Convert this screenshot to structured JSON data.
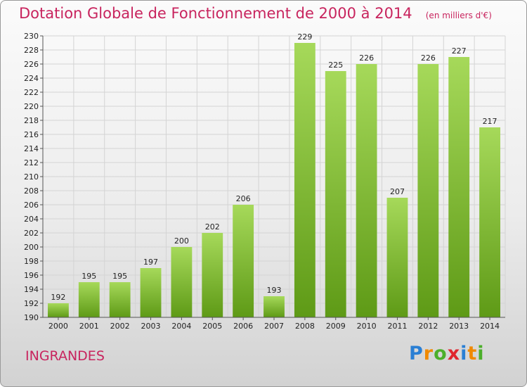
{
  "header": {
    "title": "Dotation Globale de Fonctionnement de 2000 à 2014",
    "subtitle": "(en milliers d'€)"
  },
  "footer": {
    "commune": "INGRANDES",
    "logo": [
      "P",
      "r",
      "o",
      "x",
      "i",
      "t",
      "i"
    ],
    "logo_colors": [
      "#2a7fd4",
      "#f08a00",
      "#4caf2a",
      "#e0262e",
      "#2a7fd4",
      "#f08a00",
      "#4caf2a"
    ]
  },
  "colors": {
    "bar_top": "#a6d95a",
    "bar_bottom": "#5e9a16",
    "grid": "#d4d4d4",
    "axis": "#555555"
  },
  "chart_data": {
    "type": "bar",
    "title": "Dotation Globale de Fonctionnement de 2000 à 2014",
    "subtitle": "(en milliers d'€)",
    "categories": [
      "2000",
      "2001",
      "2002",
      "2003",
      "2004",
      "2005",
      "2006",
      "2007",
      "2008",
      "2009",
      "2010",
      "2011",
      "2012",
      "2013",
      "2014"
    ],
    "values": [
      192,
      195,
      195,
      197,
      200,
      202,
      206,
      193,
      229,
      225,
      226,
      207,
      226,
      227,
      217
    ],
    "ylim": [
      190,
      230
    ],
    "yticks": [
      190,
      192,
      194,
      196,
      198,
      200,
      202,
      204,
      206,
      208,
      210,
      212,
      214,
      216,
      218,
      220,
      222,
      224,
      226,
      228,
      230
    ],
    "grid": true,
    "data_labels": true
  }
}
